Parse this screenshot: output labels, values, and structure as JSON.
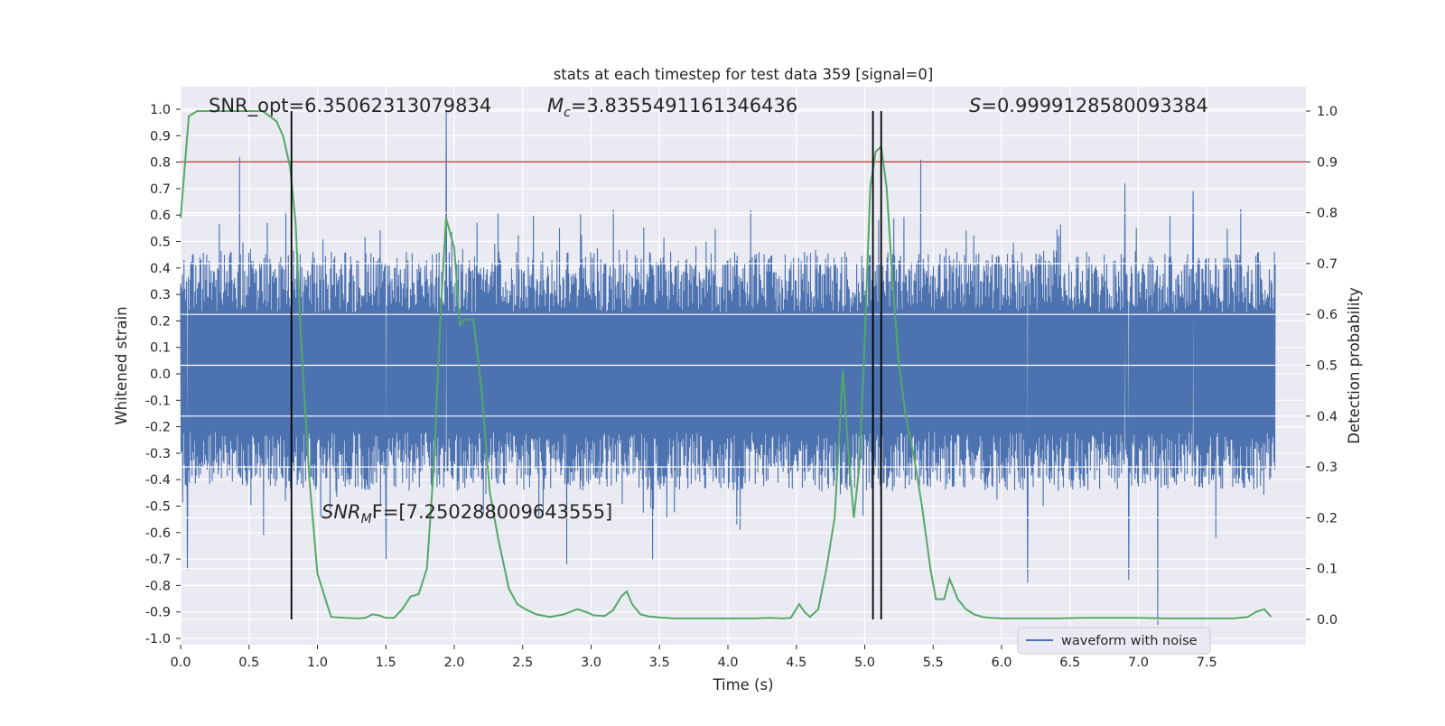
{
  "chart_data": {
    "type": "line",
    "title": "stats at each timestep for test data 359 [signal=0]",
    "xlabel": "Time (s)",
    "ylabel": "Whitened strain",
    "ylabel_right": "Detection probability",
    "xlim": [
      0.0,
      8.0
    ],
    "ylim": [
      -1.02,
      1.04
    ],
    "ylim_right": [
      -0.05,
      1.03
    ],
    "grid": true,
    "legend_position": "lower-right",
    "x_ticks": [
      "0.0",
      "0.5",
      "1.0",
      "1.5",
      "2.0",
      "2.5",
      "3.0",
      "3.5",
      "4.0",
      "4.5",
      "5.0",
      "5.5",
      "6.0",
      "6.5",
      "7.0",
      "7.5"
    ],
    "y_ticks": [
      "1.0",
      "0.9",
      "0.8",
      "0.7",
      "0.6",
      "0.5",
      "0.4",
      "0.3",
      "0.2",
      "0.1",
      "0.0",
      "-0.1",
      "-0.2",
      "-0.3",
      "-0.4",
      "-0.5",
      "-0.6",
      "-0.7",
      "-0.8",
      "-0.9",
      "-1.0"
    ],
    "y_ticks_right": [
      "1.0",
      "0.9",
      "0.8",
      "0.7",
      "0.6",
      "0.5",
      "0.4",
      "0.3",
      "0.2",
      "0.1",
      "0.0"
    ],
    "annotations": {
      "snr_opt": "SNR_opt=6.35062313079834",
      "mc_symbol": "M",
      "mc_sub": "c",
      "mc_value": "=3.8355491161346436",
      "s_symbol": "S",
      "s_value": "=0.9999128580093384",
      "snr_mf_symbol": "SNR",
      "snr_mf_sub": "M",
      "snr_mf_value": "F=[7.250288009643555]"
    },
    "threshold_right": 0.9,
    "vertical_lines_x": [
      0.81,
      5.06,
      5.12
    ],
    "colors": {
      "waveform": "#4c72b0",
      "probability": "#55a868",
      "threshold": "#c44e52",
      "vlines": "#000000",
      "background": "#eaeaf2",
      "grid": "#ffffff"
    },
    "series": [
      {
        "name": "waveform with noise",
        "description_values": {
          "duration_s": 8.0,
          "typical_envelope_upper": 0.42,
          "typical_envelope_lower": -0.4,
          "peaks_upper": [
            [
              0.43,
              0.82
            ],
            [
              1.94,
              0.99
            ],
            [
              5.41,
              0.81
            ],
            [
              6.9,
              0.72
            ],
            [
              7.4,
              0.69
            ]
          ],
          "peaks_lower": [
            [
              0.05,
              -0.74
            ],
            [
              1.5,
              -0.7
            ],
            [
              2.82,
              -0.72
            ],
            [
              3.45,
              -0.7
            ],
            [
              6.19,
              -0.79
            ],
            [
              6.93,
              -0.78
            ],
            [
              7.14,
              -0.95
            ]
          ]
        }
      },
      {
        "name": "",
        "axis": "right",
        "x": [
          0.0,
          0.06,
          0.12,
          0.2,
          0.3,
          0.4,
          0.5,
          0.6,
          0.7,
          0.75,
          0.8,
          0.84,
          0.88,
          0.94,
          1.0,
          1.1,
          1.2,
          1.3,
          1.35,
          1.4,
          1.45,
          1.5,
          1.56,
          1.62,
          1.68,
          1.74,
          1.8,
          1.85,
          1.9,
          1.94,
          2.0,
          2.04,
          2.08,
          2.14,
          2.2,
          2.26,
          2.32,
          2.4,
          2.46,
          2.52,
          2.6,
          2.7,
          2.8,
          2.9,
          2.96,
          3.02,
          3.1,
          3.16,
          3.22,
          3.26,
          3.3,
          3.36,
          3.42,
          3.5,
          3.6,
          3.7,
          3.8,
          3.9,
          4.0,
          4.1,
          4.2,
          4.3,
          4.4,
          4.46,
          4.52,
          4.56,
          4.6,
          4.66,
          4.72,
          4.78,
          4.84,
          4.88,
          4.92,
          4.96,
          5.0,
          5.04,
          5.08,
          5.12,
          5.16,
          5.2,
          5.25,
          5.3,
          5.36,
          5.42,
          5.48,
          5.52,
          5.58,
          5.62,
          5.68,
          5.74,
          5.8,
          5.86,
          5.92,
          6.0,
          6.2,
          6.4,
          6.6,
          6.8,
          7.0,
          7.2,
          7.4,
          7.6,
          7.7,
          7.8,
          7.86,
          7.92,
          7.97
        ],
        "values": [
          0.79,
          0.99,
          1.0,
          1.0,
          1.0,
          1.0,
          1.0,
          1.0,
          0.98,
          0.95,
          0.89,
          0.78,
          0.55,
          0.28,
          0.09,
          0.005,
          0.003,
          0.002,
          0.003,
          0.01,
          0.008,
          0.003,
          0.003,
          0.02,
          0.045,
          0.05,
          0.1,
          0.3,
          0.6,
          0.79,
          0.73,
          0.58,
          0.59,
          0.59,
          0.45,
          0.25,
          0.16,
          0.06,
          0.03,
          0.02,
          0.01,
          0.005,
          0.01,
          0.02,
          0.015,
          0.008,
          0.007,
          0.018,
          0.045,
          0.055,
          0.03,
          0.01,
          0.006,
          0.004,
          0.002,
          0.002,
          0.002,
          0.002,
          0.002,
          0.002,
          0.002,
          0.003,
          0.002,
          0.003,
          0.03,
          0.015,
          0.005,
          0.02,
          0.1,
          0.2,
          0.49,
          0.33,
          0.2,
          0.3,
          0.55,
          0.85,
          0.92,
          0.93,
          0.85,
          0.68,
          0.5,
          0.4,
          0.32,
          0.22,
          0.1,
          0.04,
          0.04,
          0.08,
          0.04,
          0.02,
          0.01,
          0.005,
          0.003,
          0.002,
          0.002,
          0.002,
          0.003,
          0.003,
          0.003,
          0.002,
          0.002,
          0.002,
          0.002,
          0.005,
          0.015,
          0.02,
          0.005
        ]
      }
    ]
  }
}
